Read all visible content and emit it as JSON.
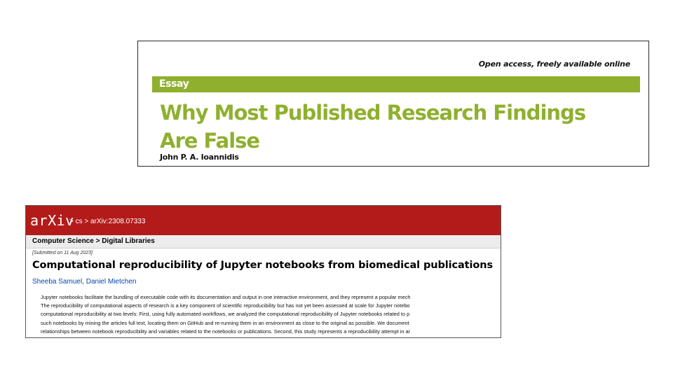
{
  "essay": {
    "open_access": "Open access, freely available online",
    "section_label": "Essay",
    "title": "Why Most Published Research Findings Are False",
    "author": "John P. A. Ioannidis"
  },
  "arxiv": {
    "logo": "arXiv",
    "breadcrumb": "> cs > arXiv:2308.07333",
    "subject": "Computer Science > Digital Libraries",
    "submitted": "[Submitted on 11 Aug 2023]",
    "title": "Computational reproducibility of Jupyter notebooks from biomedical publications",
    "authors": [
      "Sheeba Samuel",
      "Daniel Mietchen"
    ],
    "author_separator": ", ",
    "abstract_lines": [
      "Jupyter notebooks facilitate the bundling of executable code with its documentation and output in one interactive environment, and they represent a popular mech",
      "The reproducibility of computational aspects of research is a key component of scientific reproducibility but has not yet been assessed at scale for Jupyter notebo",
      "computational reproducibility at two levels: First, using fully automated workflows, we analyzed the computational reproducibility of Jupyter notebooks related to p",
      "such notebooks by mining the articles full text, locating them on GitHub and re-running them in an environment as close to the original as possible. We document",
      "relationships between notebook reproducibility and variables related to the notebooks or publications. Second, this study represents a reproducibility attempt in ar"
    ],
    "header_color": "#b31b1b"
  },
  "colors": {
    "essay_green": "#8fb02e",
    "link_blue": "#0645ad"
  }
}
